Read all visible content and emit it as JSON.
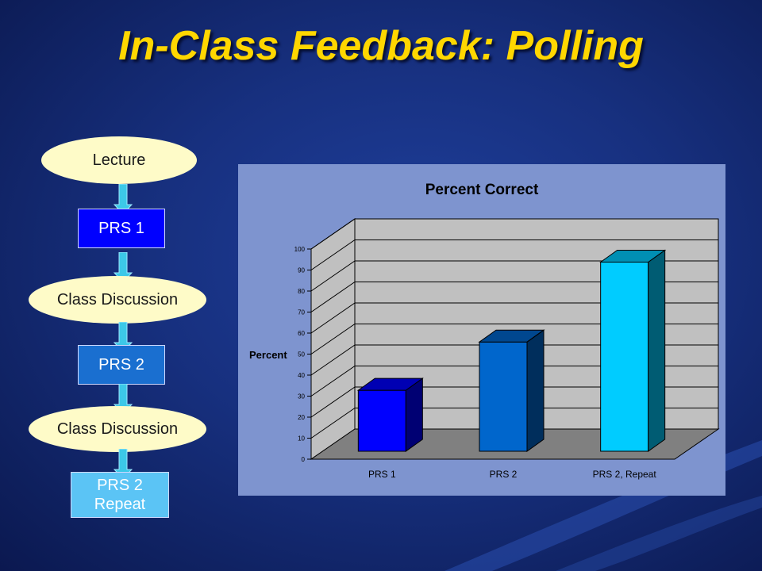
{
  "slide": {
    "title": "In-Class Feedback: Polling"
  },
  "flow": {
    "nodes": [
      {
        "id": "lecture",
        "label": "Lecture",
        "shape": "oval",
        "color": "#fefbc8"
      },
      {
        "id": "prs1",
        "label": "PRS 1",
        "shape": "rect",
        "color": "#0000ff"
      },
      {
        "id": "discussion1",
        "label": "Class Discussion",
        "shape": "oval",
        "color": "#fefbc8"
      },
      {
        "id": "prs2",
        "label": "PRS 2",
        "shape": "rect",
        "color": "#1a6fd0"
      },
      {
        "id": "discussion2",
        "label": "Class Discussion",
        "shape": "oval",
        "color": "#fefbc8"
      },
      {
        "id": "prs2repeat",
        "label": "PRS 2\nRepeat",
        "shape": "rect",
        "color": "#5bc4f5"
      }
    ],
    "arrow_color": "#3cc8e8"
  },
  "chart_data": {
    "type": "bar",
    "title": "Percent Correct",
    "ylabel": "Percent",
    "xlabel": "",
    "categories": [
      "PRS 1",
      "PRS 2",
      "PRS 2, Repeat"
    ],
    "values": [
      29,
      52,
      90
    ],
    "ylim": [
      0,
      100
    ],
    "yticks": [
      0,
      10,
      20,
      30,
      40,
      50,
      60,
      70,
      80,
      90,
      100
    ],
    "grid": true,
    "bar_colors": [
      "#0000ff",
      "#0066cc",
      "#00ccff"
    ],
    "background": "#7e94cf",
    "wall_color": "#c0c0c0",
    "floor_color": "#808080"
  }
}
